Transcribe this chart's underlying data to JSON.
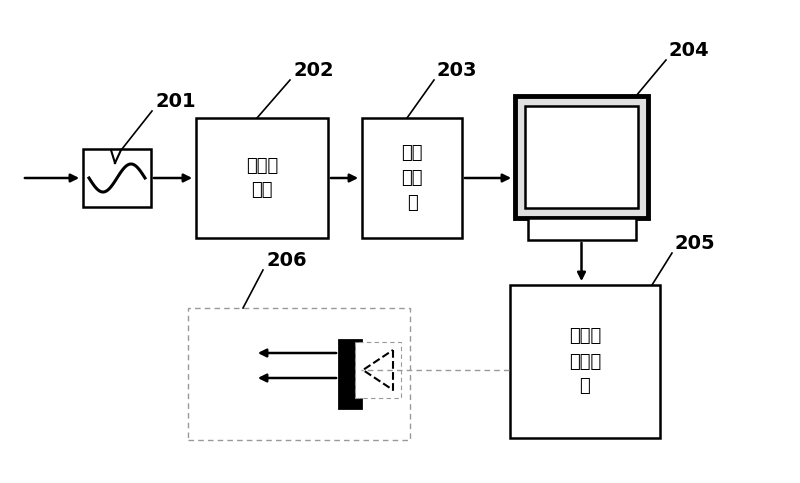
{
  "bg_color": "#ffffff",
  "box_color": "#ffffff",
  "box_edge": "#000000",
  "line_color": "#000000",
  "dashed_color": "#999999",
  "label_201": "201",
  "label_202": "202",
  "label_203": "203",
  "label_204": "204",
  "label_205": "205",
  "label_206": "206",
  "text_202": "数据解\n码器",
  "text_203": "数据\n存储\n器",
  "text_205": "信号转\n换编码\n器",
  "figsize": [
    8.0,
    4.83
  ],
  "dpi": 100
}
